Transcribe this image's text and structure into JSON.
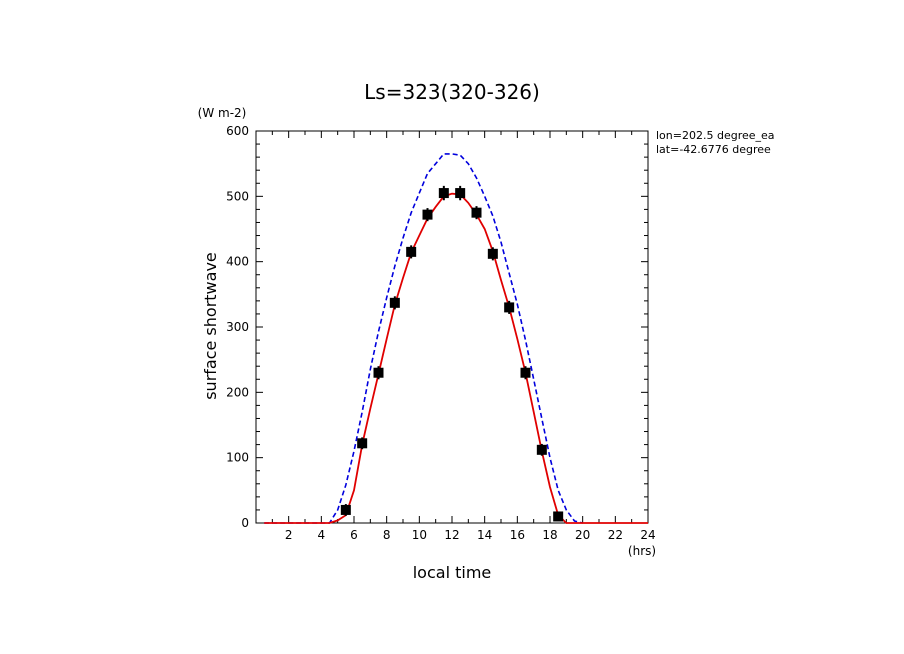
{
  "chart_data": {
    "type": "line",
    "title": "Ls=323(320-326)",
    "ylabel": "surface shortwave",
    "yunit": "(W m-2)",
    "xlabel": "local time",
    "xunit": "(hrs)",
    "annotations": [
      "lon=202.5 degree_ea",
      "lat=-42.6776 degree"
    ],
    "xlim": [
      0,
      24
    ],
    "ylim": [
      0,
      600
    ],
    "xticks": [
      2,
      4,
      6,
      8,
      10,
      12,
      14,
      16,
      18,
      20,
      22,
      24
    ],
    "yticks": [
      0,
      100,
      200,
      300,
      400,
      500,
      600
    ],
    "colors": {
      "model_red": "#e00000",
      "model_blue": "#0000dd",
      "obs": "#000000"
    },
    "series": [
      {
        "style": "dashed",
        "color": "#0000dd",
        "x": [
          0.5,
          1.5,
          2.5,
          3.5,
          4.5,
          5,
          5.5,
          6,
          6.5,
          7,
          7.5,
          8,
          8.5,
          9,
          9.5,
          10,
          10.5,
          11,
          11.5,
          12,
          12.5,
          13,
          13.5,
          14,
          14.5,
          15,
          15.5,
          16,
          16.5,
          17,
          17.5,
          18,
          18.5,
          19,
          19.5,
          20
        ],
        "y": [
          0,
          0,
          0,
          0,
          0,
          20,
          58,
          110,
          170,
          235,
          293,
          345,
          393,
          436,
          475,
          505,
          535,
          550,
          565,
          565,
          563,
          550,
          528,
          500,
          470,
          430,
          382,
          335,
          280,
          220,
          160,
          100,
          50,
          20,
          3,
          0
        ]
      },
      {
        "style": "solid",
        "color": "#e00000",
        "x": [
          0.5,
          1.5,
          2.5,
          3.5,
          4.5,
          5,
          5.5,
          6,
          6.5,
          7,
          7.5,
          8,
          8.5,
          9,
          9.5,
          10,
          10.5,
          11,
          11.5,
          12,
          12.5,
          13,
          13.5,
          14,
          14.5,
          15,
          15.5,
          16,
          16.5,
          17,
          17.5,
          18,
          18.5,
          19,
          19.5,
          20,
          21,
          22,
          23,
          24
        ],
        "y": [
          0,
          0,
          0,
          0,
          0,
          4,
          12,
          50,
          120,
          175,
          228,
          282,
          334,
          375,
          414,
          440,
          466,
          484,
          500,
          504,
          503,
          490,
          472,
          450,
          416,
          372,
          330,
          282,
          230,
          170,
          110,
          55,
          12,
          0,
          0,
          0,
          0,
          0,
          0,
          0
        ]
      },
      {
        "style": "markers",
        "color": "#000000",
        "x": [
          5.5,
          6.5,
          7.5,
          8.5,
          9.5,
          10.5,
          11.5,
          12.5,
          13.5,
          14.5,
          15.5,
          16.5,
          17.5,
          18.5
        ],
        "y": [
          20,
          122,
          230,
          337,
          415,
          472,
          505,
          505,
          475,
          412,
          330,
          230,
          112,
          10
        ],
        "err": [
          9,
          9,
          10,
          10,
          10,
          10,
          11,
          11,
          10,
          10,
          10,
          10,
          9,
          6
        ]
      }
    ]
  }
}
